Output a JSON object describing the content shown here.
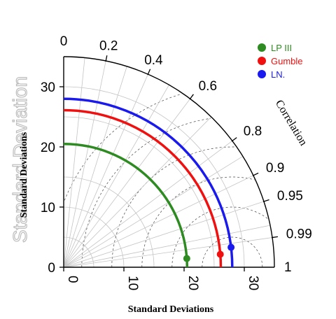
{
  "chart_data": {
    "type": "scatter",
    "subtype": "taylor-diagram",
    "xlabel": "Standard Deviations",
    "ylabel": "Standard Deviations",
    "ylabel_ghost": "Standard Deviation",
    "correlation_label": "Correlation",
    "std_range": [
      0,
      35
    ],
    "std_ticks": [
      0,
      10,
      20,
      30
    ],
    "correlation_ticks": [
      {
        "value": 0,
        "label": "0"
      },
      {
        "value": 0.2,
        "label": "0.2"
      },
      {
        "value": 0.4,
        "label": "0.4"
      },
      {
        "value": 0.6,
        "label": "0.6"
      },
      {
        "value": 0.8,
        "label": "0.8"
      },
      {
        "value": 0.9,
        "label": "0.9"
      },
      {
        "value": 0.95,
        "label": "0.95"
      },
      {
        "value": 0.99,
        "label": "0.99"
      },
      {
        "value": 1,
        "label": "1"
      }
    ],
    "extra_radial_lines": [
      0.1,
      0.3,
      0.5,
      0.7,
      0.85,
      0.98
    ],
    "series": [
      {
        "name": "LP III",
        "color": "#2e8b22",
        "std": 20.5,
        "correlation": 0.9975
      },
      {
        "name": "Gumble",
        "color": "#f01010",
        "std": 26.1,
        "correlation": 0.9966
      },
      {
        "name": "LN.",
        "color": "#1a1aee",
        "std": 28.0,
        "correlation": 0.993
      }
    ],
    "legend_position": "top-right",
    "grid": true
  }
}
